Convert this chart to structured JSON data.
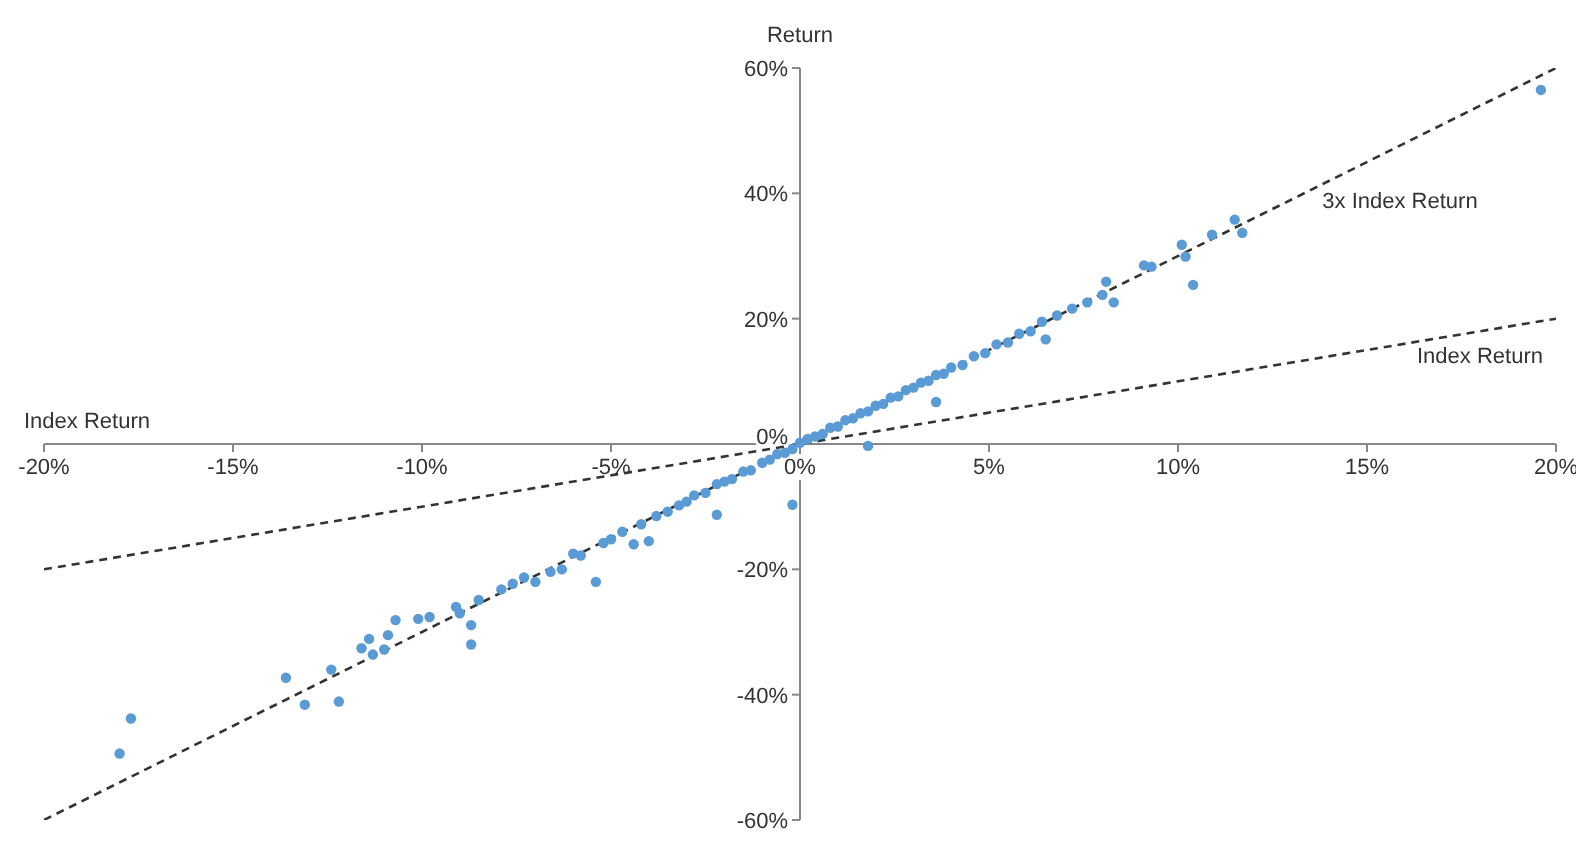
{
  "chart_data": {
    "type": "scatter",
    "xlabel": "Index Return",
    "ylabel": "Return",
    "xlim": [
      -20,
      20
    ],
    "ylim": [
      -60,
      60
    ],
    "xticks": [
      {
        "value": -20,
        "label": "-20%"
      },
      {
        "value": -15,
        "label": "-15%"
      },
      {
        "value": -10,
        "label": "-10%"
      },
      {
        "value": -5,
        "label": "-5%"
      },
      {
        "value": 0,
        "label": "0%"
      },
      {
        "value": 5,
        "label": "5%"
      },
      {
        "value": 10,
        "label": "10%"
      },
      {
        "value": 15,
        "label": "15%"
      },
      {
        "value": 20,
        "label": "20%"
      }
    ],
    "yticks": [
      {
        "value": -60,
        "label": "-60%"
      },
      {
        "value": -40,
        "label": "-40%"
      },
      {
        "value": -20,
        "label": "-20%"
      },
      {
        "value": 0,
        "label": "0%"
      },
      {
        "value": 20,
        "label": "20%"
      },
      {
        "value": 40,
        "label": "40%"
      },
      {
        "value": 60,
        "label": "60%"
      }
    ],
    "grid": false,
    "legend": false,
    "series": [
      {
        "color": "#5b9bd5",
        "marker": "circle",
        "x": [
          -18,
          -17.7,
          -13.6,
          -13.1,
          -12.4,
          -12.2,
          -11.6,
          -11.4,
          -11.3,
          -11,
          -10.9,
          -10.7,
          -10.1,
          -9.8,
          -9.1,
          -9,
          -8.7,
          -8.7,
          -8.5,
          -7.9,
          -7.6,
          -7.3,
          -7,
          -6.6,
          -6.3,
          -6,
          -5.8,
          -5.4,
          -5.2,
          -5,
          -4.7,
          -4.4,
          -4.2,
          -4,
          -3.8,
          -3.5,
          -3.2,
          -3,
          -2.8,
          -2.5,
          -2.2,
          -2.2,
          -2,
          -1.8,
          -1.5,
          -1.3,
          -1,
          -0.8,
          -0.6,
          -0.4,
          -0.2,
          -0.2,
          0,
          0.2,
          0.4,
          0.6,
          0.8,
          1,
          1.2,
          1.4,
          1.6,
          1.8,
          1.8,
          2,
          2.2,
          2.4,
          2.6,
          2.8,
          3,
          3.2,
          3.4,
          3.6,
          3.6,
          3.8,
          4,
          4.3,
          4.6,
          4.9,
          5.2,
          5.5,
          5.8,
          6.1,
          6.4,
          6.5,
          6.8,
          7.2,
          7.6,
          8,
          8.1,
          8.3,
          9.1,
          9.3,
          10.1,
          10.2,
          10.4,
          10.9,
          11.5,
          11.7,
          19.6
        ],
        "values": [
          -49.4,
          -43.8,
          -37.3,
          -41.6,
          -36,
          -41.1,
          -32.6,
          -31.1,
          -33.6,
          -32.8,
          -30.5,
          -28.1,
          -27.9,
          -27.6,
          -26,
          -27,
          -28.9,
          -32,
          -24.9,
          -23.2,
          -22.3,
          -21.3,
          -22,
          -20.4,
          -20,
          -17.5,
          -17.8,
          -22,
          -15.8,
          -15.2,
          -14,
          -16,
          -12.8,
          -15.5,
          -11.5,
          -10.8,
          -9.8,
          -9.2,
          -8.2,
          -7.8,
          -6.4,
          -11.3,
          -6,
          -5.6,
          -4.4,
          -4.2,
          -3,
          -2.5,
          -1.6,
          -1.4,
          -0.8,
          -9.7,
          0.2,
          0.8,
          1.2,
          1.6,
          2.6,
          2.8,
          3.8,
          4.1,
          4.9,
          5.2,
          -0.3,
          6.1,
          6.4,
          7.4,
          7.6,
          8.6,
          9,
          9.8,
          10.1,
          11,
          6.7,
          11.2,
          12.2,
          12.6,
          14,
          14.5,
          15.9,
          16.2,
          17.6,
          18,
          19.5,
          16.7,
          20.5,
          21.6,
          22.6,
          23.8,
          25.9,
          22.6,
          28.5,
          28.3,
          31.8,
          29.9,
          25.4,
          33.4,
          35.8,
          33.7,
          56.5
        ]
      },
      {
        "type": "line",
        "name": "3x Index Return",
        "color": "#333333",
        "line_style": "dashed",
        "x": [
          -20,
          20
        ],
        "values": [
          -60,
          60
        ]
      },
      {
        "type": "line",
        "name": "Index Return",
        "color": "#333333",
        "line_style": "dashed",
        "x": [
          -20,
          20
        ],
        "values": [
          -20,
          20
        ]
      }
    ]
  }
}
